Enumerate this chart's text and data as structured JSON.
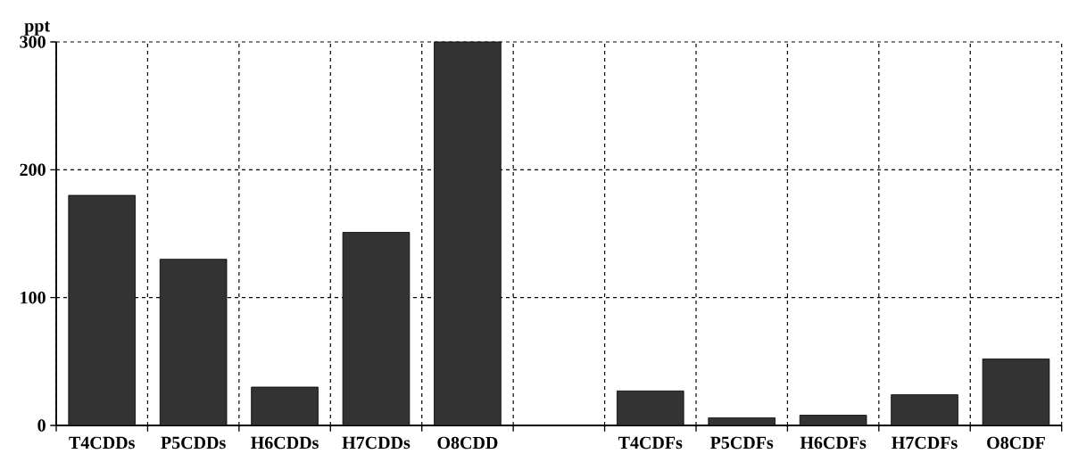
{
  "chart_data": {
    "type": "bar",
    "ylabel": "ppt",
    "categories": [
      "T4CDDs",
      "P5CDDs",
      "H6CDDs",
      "H7CDDs",
      "O8CDD",
      null,
      "T4CDFs",
      "P5CDFs",
      "H6CDFs",
      "H7CDFs",
      "O8CDF"
    ],
    "values": [
      180,
      130,
      30,
      151,
      300,
      null,
      27,
      6,
      8,
      24,
      52
    ],
    "color": "#333333",
    "ylim": [
      0,
      300
    ],
    "yticks": [
      0,
      100,
      200,
      300
    ],
    "grid": true
  }
}
